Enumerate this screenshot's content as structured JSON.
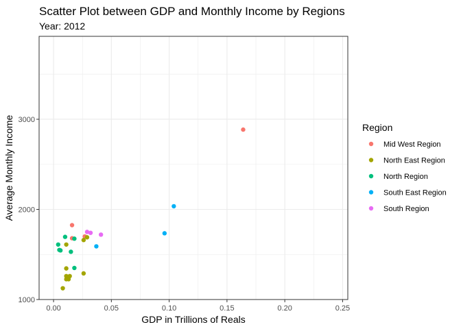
{
  "chart_data": {
    "type": "scatter",
    "title": "Scatter Plot between GDP and Monthly Income by Regions",
    "subtitle": "Year: 2012",
    "xlabel": "GDP in Trillions of Reals",
    "ylabel": "Average Monthly Income",
    "xlim": [
      -0.0125,
      0.2545
    ],
    "ylim": [
      1000,
      3920
    ],
    "x_ticks": [
      0.0,
      0.05,
      0.1,
      0.15,
      0.2,
      0.25
    ],
    "x_tick_labels": [
      "0.00",
      "0.05",
      "0.10",
      "0.15",
      "0.20",
      "0.25"
    ],
    "y_ticks": [
      1000,
      2000,
      3000
    ],
    "y_tick_labels": [
      "1000",
      "2000",
      "3000"
    ],
    "grid": true,
    "legend": {
      "title": "Region",
      "position": "right"
    },
    "series": [
      {
        "name": "Mid West Region",
        "color": "#F8766D",
        "points": [
          [
            0.164,
            2885
          ],
          [
            0.016,
            1825
          ],
          [
            0.016,
            1680
          ],
          [
            0.027,
            1700
          ]
        ]
      },
      {
        "name": "North East Region",
        "color": "#A3A500",
        "points": [
          [
            0.011,
            1610
          ],
          [
            0.026,
            1660
          ],
          [
            0.011,
            1345
          ],
          [
            0.011,
            1260
          ],
          [
            0.014,
            1260
          ],
          [
            0.011,
            1225
          ],
          [
            0.013,
            1225
          ],
          [
            0.008,
            1125
          ],
          [
            0.026,
            1290
          ],
          [
            0.029,
            1690
          ]
        ]
      },
      {
        "name": "North Region",
        "color": "#00BF7D",
        "points": [
          [
            0.01,
            1695
          ],
          [
            0.004,
            1610
          ],
          [
            0.005,
            1550
          ],
          [
            0.006,
            1545
          ],
          [
            0.018,
            1675
          ],
          [
            0.015,
            1530
          ],
          [
            0.018,
            1350
          ]
        ]
      },
      {
        "name": "South East Region",
        "color": "#00B0F6",
        "points": [
          [
            0.104,
            2035
          ],
          [
            0.096,
            1735
          ],
          [
            0.037,
            1590
          ]
        ]
      },
      {
        "name": "South Region",
        "color": "#E76BF3",
        "points": [
          [
            0.029,
            1750
          ],
          [
            0.032,
            1740
          ],
          [
            0.041,
            1720
          ]
        ]
      }
    ]
  }
}
